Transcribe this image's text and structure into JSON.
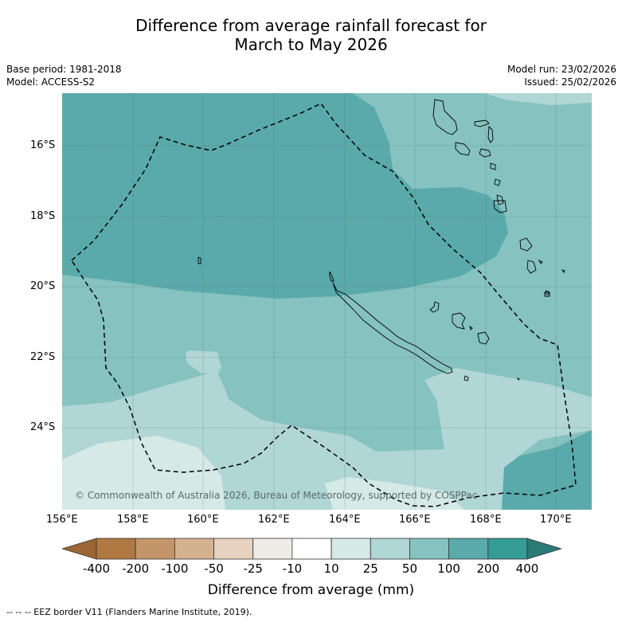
{
  "title": {
    "line1": "Difference from average rainfall forecast for",
    "line2": "March to May 2026"
  },
  "meta": {
    "base_period": "Base period: 1981-2018",
    "model": "Model: ACCESS-S2",
    "model_run": "Model run: 23/02/2026",
    "issued": "Issued: 25/02/2026"
  },
  "map": {
    "copyright": "© Commonwealth of Australia 2026, Bureau of Meteorology, supported by COSPPac",
    "lat_ticks": [
      "16°S",
      "18°S",
      "20°S",
      "22°S",
      "24°S"
    ],
    "lon_ticks": [
      "156°E",
      "158°E",
      "160°E",
      "162°E",
      "164°E",
      "166°E",
      "168°E",
      "170°E"
    ],
    "colors": {
      "c10_25": "#d5e9e7",
      "c25_50": "#b0d6d5",
      "c50_100": "#85c2c0",
      "c100_200": "#5aaaab",
      "coast": "#000000",
      "border": "#000000",
      "grid": "#555555"
    }
  },
  "legend": {
    "labels": [
      "-400",
      "-200",
      "-100",
      "-50",
      "-25",
      "-10",
      "10",
      "25",
      "50",
      "100",
      "200",
      "400"
    ],
    "colors": [
      "#9b6633",
      "#b07842",
      "#c4956a",
      "#d4b191",
      "#e6d2bf",
      "#efebe6",
      "#ffffff",
      "#d5e9e7",
      "#b0d6d5",
      "#85c2c0",
      "#5aaaab",
      "#359b95",
      "#2a7a76"
    ],
    "title": "Difference from average (mm)"
  },
  "footnote": "--  --  -- EEZ border V11 (Flanders Marine Institute, 2019)."
}
